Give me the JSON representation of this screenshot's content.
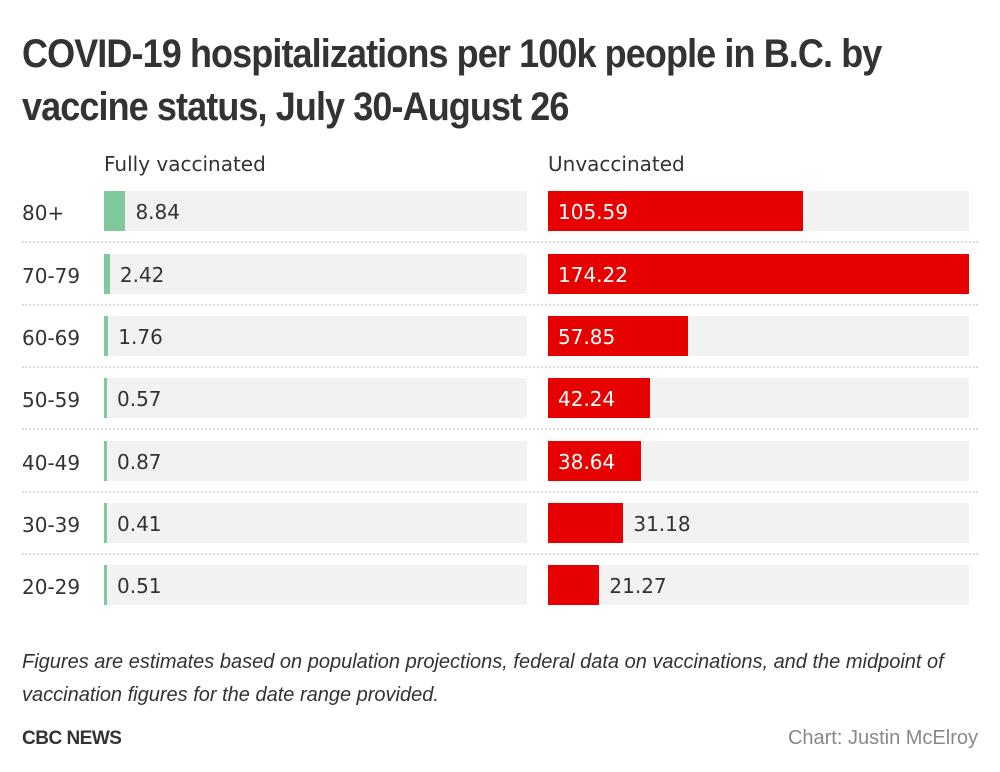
{
  "chart_data": {
    "type": "bar",
    "title": "COVID-19 hospitalizations per 100k people in B.C. by vaccine status, July 30-August 26",
    "xlabel": "",
    "ylabel": "",
    "categories": [
      "80+",
      "70-79",
      "60-69",
      "50-59",
      "40-49",
      "30-39",
      "20-29"
    ],
    "series": [
      {
        "name": "Fully vaccinated",
        "color": "#80c99a",
        "values": [
          8.84,
          2.42,
          1.76,
          0.57,
          0.87,
          0.41,
          0.51
        ],
        "labels": [
          "8.84",
          "2.42",
          "1.76",
          "0.57",
          "0.87",
          "0.41",
          "0.51"
        ]
      },
      {
        "name": "Unvaccinated",
        "color": "#e60000",
        "values": [
          105.59,
          174.22,
          57.85,
          42.24,
          38.64,
          31.18,
          21.27
        ],
        "labels": [
          "105.59",
          "174.22",
          "57.85",
          "42.24",
          "38.64",
          "31.18",
          "21.27"
        ]
      }
    ],
    "xlim": [
      0,
      174.22
    ],
    "orientation": "horizontal",
    "grid": false,
    "legend": "column-headers"
  },
  "colors": {
    "track": "#f2f2f2",
    "text": "#333333",
    "credit": "#888888"
  },
  "footer": {
    "note": "Figures are estimates based on population projections, federal data on vaccinations, and the midpoint of vaccination figures for the date range provided.",
    "brand": "CBC NEWS",
    "credit": "Chart: Justin McElroy"
  }
}
